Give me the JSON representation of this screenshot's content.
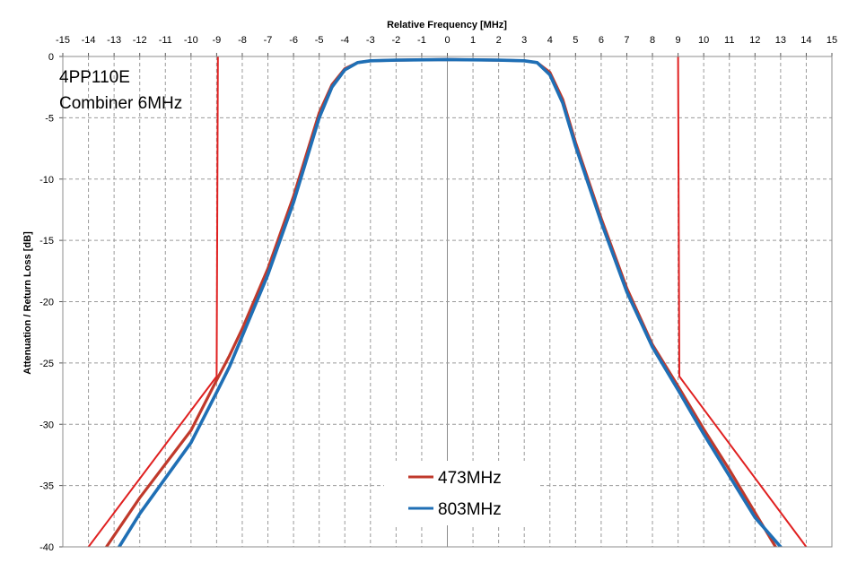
{
  "chart_data": {
    "type": "line",
    "xlabel": "Relative Frequency [MHz]",
    "ylabel": "Attenuation / Return Loss [dB]",
    "xlim": [
      -15,
      15
    ],
    "ylim": [
      -40,
      0
    ],
    "x_ticks": [
      -15,
      -14,
      -13,
      -12,
      -11,
      -10,
      -9,
      -8,
      -7,
      -6,
      -5,
      -4,
      -3,
      -2,
      -1,
      0,
      1,
      2,
      3,
      4,
      5,
      6,
      7,
      8,
      9,
      10,
      11,
      12,
      13,
      14,
      15
    ],
    "y_ticks": [
      0,
      -5,
      -10,
      -15,
      -20,
      -25,
      -30,
      -35,
      -40
    ],
    "x_axis_position": "top",
    "grid": true,
    "annotation_lines": [
      "4PP110E",
      "Combiner 6MHz"
    ],
    "legend_position": "bottom-center",
    "series": [
      {
        "name": "473MHz",
        "color": "#c0392b",
        "points": [
          [
            -13.3,
            -40
          ],
          [
            -12,
            -36
          ],
          [
            -10,
            -30.5
          ],
          [
            -9,
            -26.4
          ],
          [
            -8.5,
            -24.4
          ],
          [
            -8,
            -22.2
          ],
          [
            -7,
            -17.3
          ],
          [
            -6,
            -11.4
          ],
          [
            -5,
            -4.6
          ],
          [
            -4.5,
            -2.3
          ],
          [
            -4,
            -1.0
          ],
          [
            -3.5,
            -0.5
          ],
          [
            -3,
            -0.35
          ],
          [
            -2,
            -0.3
          ],
          [
            0,
            -0.25
          ],
          [
            2,
            -0.3
          ],
          [
            3,
            -0.35
          ],
          [
            3.5,
            -0.5
          ],
          [
            4,
            -1.3
          ],
          [
            4.5,
            -3.5
          ],
          [
            5,
            -7.0
          ],
          [
            6,
            -13.2
          ],
          [
            7,
            -18.9
          ],
          [
            8,
            -23.5
          ],
          [
            9,
            -26.9
          ],
          [
            10,
            -30.4
          ],
          [
            11,
            -33.7
          ],
          [
            12,
            -37.2
          ],
          [
            12.8,
            -40
          ]
        ]
      },
      {
        "name": "803MHz",
        "color": "#1f6fb5",
        "points": [
          [
            -12.8,
            -40
          ],
          [
            -12,
            -37.3
          ],
          [
            -10,
            -31.5
          ],
          [
            -9,
            -27.4
          ],
          [
            -8.5,
            -25.3
          ],
          [
            -8,
            -22.8
          ],
          [
            -7,
            -17.8
          ],
          [
            -6,
            -11.9
          ],
          [
            -5,
            -5.0
          ],
          [
            -4.5,
            -2.5
          ],
          [
            -4,
            -1.1
          ],
          [
            -3.5,
            -0.5
          ],
          [
            -3,
            -0.35
          ],
          [
            -2,
            -0.3
          ],
          [
            0,
            -0.25
          ],
          [
            2,
            -0.3
          ],
          [
            3,
            -0.35
          ],
          [
            3.5,
            -0.5
          ],
          [
            4,
            -1.5
          ],
          [
            4.5,
            -3.8
          ],
          [
            5,
            -7.3
          ],
          [
            6,
            -13.5
          ],
          [
            7,
            -19.2
          ],
          [
            8,
            -23.7
          ],
          [
            9,
            -27.2
          ],
          [
            10,
            -30.8
          ],
          [
            11,
            -34.2
          ],
          [
            12,
            -37.6
          ],
          [
            13,
            -40
          ]
        ]
      },
      {
        "name": "",
        "color": "#e02020",
        "points": [
          [
            -14,
            -40
          ],
          [
            -9,
            -26.1
          ],
          [
            -8.95,
            0
          ]
        ]
      },
      {
        "name": "",
        "color": "#e02020",
        "points": [
          [
            9,
            0
          ],
          [
            9.05,
            -26.1
          ],
          [
            14,
            -40
          ]
        ]
      }
    ]
  }
}
